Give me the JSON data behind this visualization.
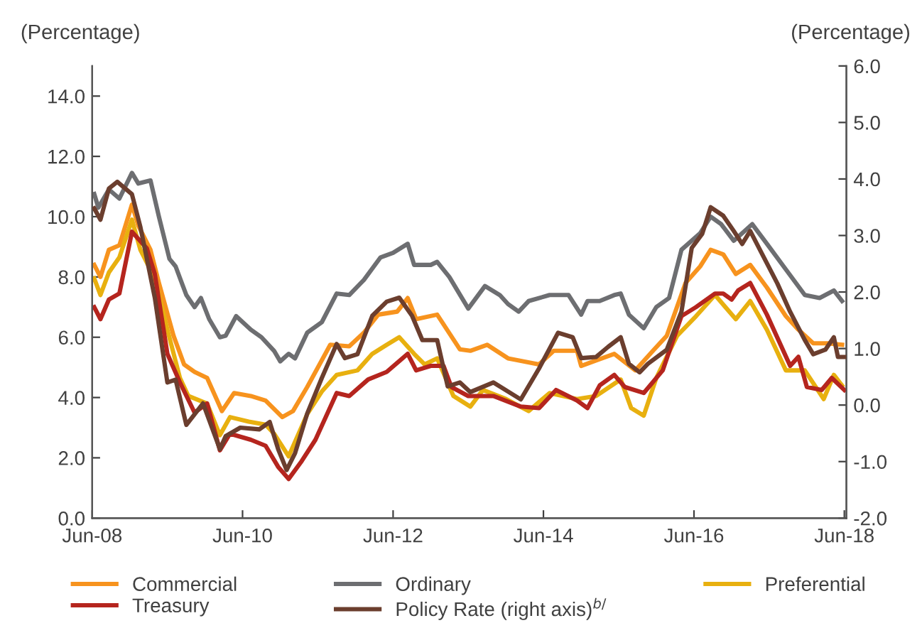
{
  "chart_data": {
    "type": "line",
    "ylabel": "(Percentage)",
    "y2label": "(Percentage)",
    "xlim": [
      "2008-06-01",
      "2018-06-11"
    ],
    "xticks": [
      {
        "value": "2008-06-01",
        "label": "Jun-08"
      },
      {
        "value": "2010-06-01",
        "label": "Jun-10"
      },
      {
        "value": "2012-06-01",
        "label": "Jun-12"
      },
      {
        "value": "2014-06-01",
        "label": "Jun-14"
      },
      {
        "value": "2016-06-01",
        "label": "Jun-16"
      },
      {
        "value": "2018-06-01",
        "label": "Jun-18"
      }
    ],
    "ylim": [
      0,
      15
    ],
    "yticks": [
      {
        "value": 0,
        "label": "0.0"
      },
      {
        "value": 2,
        "label": "2.0"
      },
      {
        "value": 4,
        "label": "4.0"
      },
      {
        "value": 6,
        "label": "6.0"
      },
      {
        "value": 8,
        "label": "8.0"
      },
      {
        "value": 10,
        "label": "10.0"
      },
      {
        "value": 12,
        "label": "12.0"
      },
      {
        "value": 14,
        "label": "14.0"
      }
    ],
    "y2lim": [
      -2,
      6
    ],
    "y2ticks": [
      {
        "value": -2,
        "label": "-2.0"
      },
      {
        "value": -1,
        "label": "-1.0"
      },
      {
        "value": 0,
        "label": "0.0"
      },
      {
        "value": 1,
        "label": "1.0"
      },
      {
        "value": 2,
        "label": "2.0"
      },
      {
        "value": 3,
        "label": "3.0"
      },
      {
        "value": 4,
        "label": "4.0"
      },
      {
        "value": 5,
        "label": "5.0"
      },
      {
        "value": 6,
        "label": "6.0"
      }
    ],
    "grid": false,
    "legend": "bottom",
    "marker": "none",
    "line_style": "solid",
    "series": [
      {
        "name": "Commercial",
        "color": "#f7931e",
        "x": [
          "2008-06-11",
          "2008-07-11",
          "2008-08-21",
          "2008-10-11",
          "2008-12-11",
          "2009-01-11",
          "2009-03-11",
          "2009-04-21",
          "2009-07-01",
          "2009-08-21",
          "2009-10-11",
          "2009-12-11",
          "2010-02-21",
          "2010-04-21",
          "2010-07-11",
          "2010-09-21",
          "2010-12-11",
          "2011-02-01",
          "2011-04-11",
          "2011-08-01",
          "2011-11-01",
          "2012-01-11",
          "2012-03-21",
          "2012-06-21",
          "2012-08-11",
          "2012-09-21",
          "2013-01-01",
          "2013-04-21",
          "2013-06-11",
          "2013-09-01",
          "2013-12-11",
          "2014-05-11",
          "2014-07-21",
          "2014-11-11",
          "2014-12-01",
          "2015-05-11",
          "2015-08-21",
          "2015-11-21",
          "2016-01-21",
          "2016-04-21",
          "2016-07-01",
          "2016-08-21",
          "2016-10-21",
          "2016-12-21",
          "2017-03-01",
          "2017-05-21",
          "2017-08-21",
          "2017-10-21",
          "2018-01-01",
          "2018-03-11",
          "2018-05-21"
        ],
        "values": [
          8.4,
          8.0,
          8.9,
          9.05,
          10.4,
          9.7,
          8.9,
          7.8,
          6.05,
          5.1,
          4.85,
          4.65,
          3.55,
          4.15,
          4.05,
          3.9,
          3.35,
          3.55,
          4.35,
          5.75,
          5.7,
          6.15,
          6.75,
          6.85,
          7.3,
          6.6,
          6.75,
          5.6,
          5.55,
          5.75,
          5.3,
          5.1,
          5.55,
          5.55,
          5.05,
          5.45,
          4.9,
          5.6,
          6.05,
          7.8,
          8.35,
          8.9,
          8.75,
          8.1,
          8.4,
          7.65,
          6.7,
          6.25,
          5.8,
          5.8,
          5.75
        ]
      },
      {
        "name": "Ordinary",
        "color": "#6d6e71",
        "x": [
          "2008-06-11",
          "2008-07-01",
          "2008-08-21",
          "2008-10-11",
          "2008-12-11",
          "2009-01-11",
          "2009-03-11",
          "2009-04-21",
          "2009-06-11",
          "2009-07-11",
          "2009-09-01",
          "2009-10-11",
          "2009-11-11",
          "2009-12-21",
          "2010-02-11",
          "2010-03-11",
          "2010-05-01",
          "2010-07-11",
          "2010-09-01",
          "2010-11-01",
          "2010-12-01",
          "2011-01-11",
          "2011-02-11",
          "2011-04-11",
          "2011-06-21",
          "2011-09-01",
          "2011-11-01",
          "2012-01-11",
          "2012-04-01",
          "2012-06-01",
          "2012-08-11",
          "2012-09-11",
          "2012-12-01",
          "2013-01-01",
          "2013-03-01",
          "2013-06-01",
          "2013-08-21",
          "2013-11-01",
          "2013-12-11",
          "2014-02-01",
          "2014-03-21",
          "2014-07-01",
          "2014-10-01",
          "2014-12-01",
          "2015-01-01",
          "2015-03-01",
          "2015-05-11",
          "2015-06-11",
          "2015-07-21",
          "2015-10-01",
          "2015-12-01",
          "2016-02-01",
          "2016-04-01",
          "2016-07-01",
          "2016-08-21",
          "2016-10-11",
          "2016-12-11",
          "2017-03-11",
          "2017-05-21",
          "2017-08-21",
          "2017-11-21",
          "2018-02-01",
          "2018-04-11",
          "2018-05-21"
        ],
        "values": [
          10.75,
          10.3,
          10.9,
          10.6,
          11.45,
          11.1,
          11.2,
          10.0,
          8.6,
          8.35,
          7.4,
          7.0,
          7.3,
          6.6,
          6.0,
          6.05,
          6.7,
          6.25,
          6.0,
          5.55,
          5.2,
          5.45,
          5.3,
          6.15,
          6.5,
          7.45,
          7.4,
          7.9,
          8.65,
          8.8,
          9.1,
          8.4,
          8.4,
          8.5,
          8.0,
          6.95,
          7.7,
          7.4,
          7.1,
          6.85,
          7.2,
          7.4,
          7.4,
          6.75,
          7.2,
          7.2,
          7.4,
          7.45,
          6.75,
          6.3,
          7.0,
          7.3,
          8.9,
          9.45,
          10.0,
          9.75,
          9.2,
          9.75,
          9.1,
          8.25,
          7.4,
          7.3,
          7.55,
          7.2
        ]
      },
      {
        "name": "Preferential",
        "color": "#e8b00f",
        "x": [
          "2008-06-11",
          "2008-07-11",
          "2008-08-21",
          "2008-10-11",
          "2008-12-11",
          "2009-01-21",
          "2009-04-01",
          "2009-06-01",
          "2009-08-01",
          "2009-09-11",
          "2009-12-11",
          "2010-02-11",
          "2010-04-01",
          "2010-07-01",
          "2010-09-21",
          "2010-11-01",
          "2011-01-11",
          "2011-04-11",
          "2011-06-21",
          "2011-09-01",
          "2011-12-11",
          "2012-02-21",
          "2012-05-01",
          "2012-07-01",
          "2012-09-11",
          "2012-11-01",
          "2013-01-01",
          "2013-03-21",
          "2013-06-11",
          "2013-08-11",
          "2013-12-01",
          "2014-03-21",
          "2014-07-01",
          "2014-11-11",
          "2015-02-11",
          "2015-06-11",
          "2015-08-01",
          "2015-10-01",
          "2015-12-01",
          "2016-03-11",
          "2016-06-11",
          "2016-09-11",
          "2016-12-21",
          "2017-03-01",
          "2017-05-21",
          "2017-08-21",
          "2017-11-21",
          "2018-02-21",
          "2018-04-11",
          "2018-05-21"
        ],
        "values": [
          7.95,
          7.4,
          8.15,
          8.65,
          9.9,
          8.9,
          7.95,
          6.25,
          4.65,
          4.05,
          3.8,
          2.75,
          3.35,
          3.2,
          3.1,
          2.8,
          2.05,
          3.45,
          4.2,
          4.75,
          4.9,
          5.45,
          5.75,
          6.0,
          5.45,
          5.1,
          5.3,
          4.05,
          3.7,
          4.25,
          3.95,
          3.55,
          4.15,
          3.95,
          4.05,
          4.6,
          3.65,
          3.4,
          4.65,
          6.05,
          6.7,
          7.4,
          6.6,
          7.2,
          6.25,
          4.9,
          4.9,
          3.95,
          4.75,
          4.4
        ]
      },
      {
        "name": "Treasury",
        "color": "#b5251e",
        "x": [
          "2008-06-11",
          "2008-07-11",
          "2008-08-21",
          "2008-10-11",
          "2008-12-11",
          "2009-02-21",
          "2009-04-01",
          "2009-06-01",
          "2009-08-01",
          "2009-10-11",
          "2009-12-11",
          "2010-02-11",
          "2010-04-01",
          "2010-07-11",
          "2010-09-21",
          "2010-11-21",
          "2011-01-11",
          "2011-03-11",
          "2011-05-21",
          "2011-09-01",
          "2011-11-01",
          "2012-02-01",
          "2012-05-01",
          "2012-08-11",
          "2012-09-21",
          "2012-12-01",
          "2013-02-01",
          "2013-03-11",
          "2013-06-01",
          "2013-10-01",
          "2014-02-11",
          "2014-05-11",
          "2014-08-01",
          "2014-11-11",
          "2015-01-01",
          "2015-03-01",
          "2015-05-11",
          "2015-07-01",
          "2015-10-01",
          "2016-01-01",
          "2016-04-01",
          "2016-06-11",
          "2016-09-11",
          "2016-10-21",
          "2016-12-01",
          "2017-01-01",
          "2017-03-01",
          "2017-05-21",
          "2017-09-11",
          "2017-10-21",
          "2017-12-01",
          "2018-02-11",
          "2018-04-01",
          "2018-06-01"
        ],
        "values": [
          7.0,
          6.6,
          7.25,
          7.45,
          9.5,
          8.95,
          8.1,
          5.45,
          4.5,
          3.5,
          3.8,
          2.25,
          2.8,
          2.6,
          2.4,
          1.7,
          1.3,
          1.85,
          2.6,
          4.15,
          4.05,
          4.6,
          4.85,
          5.45,
          4.9,
          5.05,
          5.05,
          4.35,
          4.05,
          4.05,
          3.7,
          3.65,
          4.25,
          3.9,
          3.65,
          4.4,
          4.75,
          4.35,
          4.15,
          4.9,
          6.7,
          7.0,
          7.45,
          7.45,
          7.25,
          7.55,
          7.8,
          6.75,
          5.05,
          5.35,
          4.35,
          4.25,
          4.65,
          4.25
        ]
      },
      {
        "name": "Policy Rate (right axis)$^{b/}$",
        "color": "#6b3e2e",
        "axis": "y2",
        "x": [
          "2008-06-11",
          "2008-07-11",
          "2008-08-21",
          "2008-10-01",
          "2008-12-11",
          "2009-01-21",
          "2009-04-01",
          "2009-06-01",
          "2009-07-11",
          "2009-09-01",
          "2009-11-21",
          "2010-02-11",
          "2010-03-11",
          "2010-05-21",
          "2010-08-21",
          "2010-10-11",
          "2010-11-21",
          "2011-01-01",
          "2011-02-11",
          "2011-04-11",
          "2011-06-21",
          "2011-09-01",
          "2011-10-11",
          "2011-12-11",
          "2012-02-21",
          "2012-05-01",
          "2012-07-01",
          "2012-09-01",
          "2012-10-21",
          "2013-01-01",
          "2013-02-21",
          "2013-04-21",
          "2013-06-11",
          "2013-10-01",
          "2014-02-11",
          "2014-05-11",
          "2014-08-11",
          "2014-10-21",
          "2014-12-01",
          "2015-02-11",
          "2015-04-11",
          "2015-06-11",
          "2015-07-21",
          "2015-09-11",
          "2015-10-21",
          "2016-01-21",
          "2016-04-01",
          "2016-05-21",
          "2016-07-11",
          "2016-08-21",
          "2016-10-21",
          "2016-12-11",
          "2017-01-21",
          "2017-03-01",
          "2017-05-01",
          "2017-07-11",
          "2017-09-11",
          "2017-11-21",
          "2018-01-01",
          "2018-03-01",
          "2018-04-11",
          "2018-05-01",
          "2018-06-01"
        ],
        "values": [
          3.48,
          3.28,
          3.83,
          3.95,
          3.73,
          3.15,
          1.9,
          0.4,
          0.45,
          -0.35,
          0.03,
          -0.78,
          -0.55,
          -0.4,
          -0.43,
          -0.3,
          -0.78,
          -1.15,
          -0.85,
          -0.15,
          0.48,
          1.08,
          0.83,
          0.9,
          1.58,
          1.83,
          1.9,
          1.58,
          1.15,
          1.15,
          0.33,
          0.4,
          0.23,
          0.4,
          0.1,
          0.65,
          1.28,
          1.2,
          0.83,
          0.85,
          1.03,
          1.2,
          0.73,
          0.58,
          0.73,
          0.98,
          1.65,
          2.78,
          3.03,
          3.5,
          3.35,
          3.08,
          2.85,
          3.08,
          2.65,
          2.15,
          1.65,
          1.15,
          0.9,
          0.98,
          1.2,
          0.85,
          0.85
        ]
      }
    ]
  }
}
